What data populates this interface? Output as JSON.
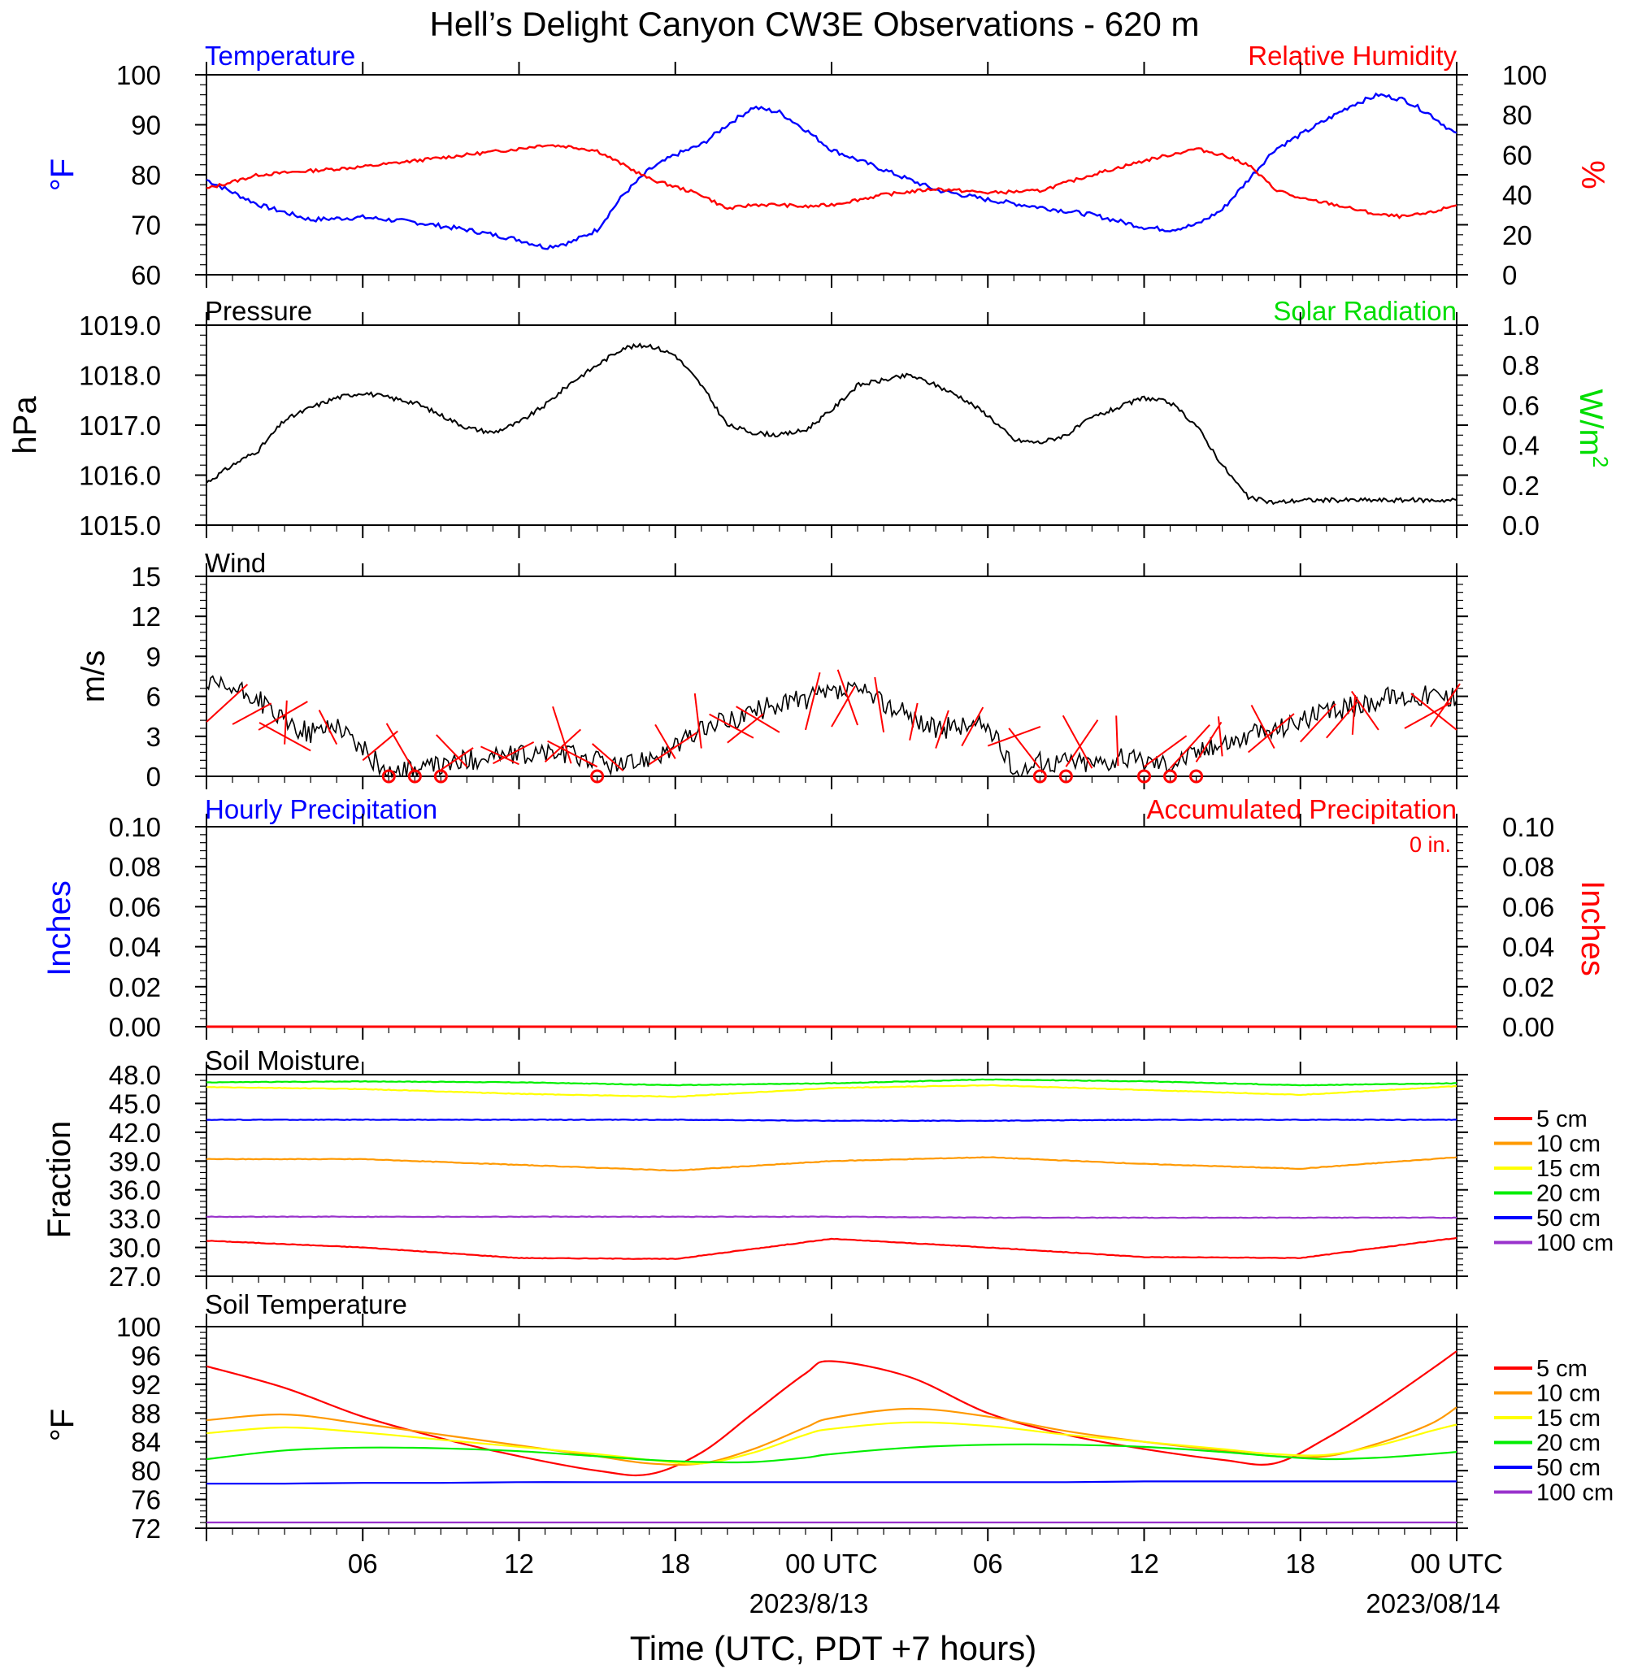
{
  "title": "Hell’s Delight Canyon CW3E Observations - 620 m",
  "xlabel": "Time (UTC, PDT +7 hours)",
  "x_axis": {
    "ticks": [
      "06",
      "12",
      "18",
      "00 UTC",
      "06",
      "12",
      "18",
      "00 UTC"
    ],
    "dates": [
      "2023/8/13",
      "2023/08/14"
    ],
    "range_hours": [
      0,
      48
    ]
  },
  "colors": {
    "temperature": "#0000ff",
    "humidity": "#ff0000",
    "solar": "#00dd00",
    "black": "#000000",
    "red": "#ff0000",
    "blue": "#0000ff"
  },
  "chart_data": [
    {
      "type": "line",
      "panel": "temperature-humidity",
      "left_title": "Temperature",
      "right_title": "Relative Humidity",
      "ylabel_left": "°F",
      "ylabel_right": "%",
      "ylim_left": [
        60,
        100
      ],
      "ylim_right": [
        0,
        100
      ],
      "yticks_left": [
        "60",
        "70",
        "80",
        "90",
        "100"
      ],
      "yticks_right": [
        "0",
        "20",
        "40",
        "60",
        "80",
        "100"
      ],
      "x": [
        0,
        2,
        4,
        6,
        8,
        10,
        12,
        13,
        14,
        15,
        16,
        17,
        18,
        19,
        20,
        21,
        22,
        23,
        24,
        26,
        28,
        30,
        32,
        34,
        36,
        37,
        38,
        39,
        40,
        41,
        42,
        43,
        44,
        45,
        46,
        47,
        48
      ],
      "series": [
        {
          "name": "Temperature",
          "axis": "left",
          "values": [
            79,
            74,
            71,
            71.5,
            70.5,
            69,
            67,
            65.5,
            66.5,
            69,
            76,
            81,
            84,
            86,
            90,
            93.5,
            92.5,
            89,
            85,
            81,
            77,
            75,
            73.5,
            72,
            69.5,
            69,
            70,
            73,
            79,
            85,
            88,
            91,
            94,
            96,
            95,
            92,
            88
          ]
        },
        {
          "name": "Relative Humidity",
          "axis": "left_rh",
          "values": [
            43,
            50,
            52,
            54,
            57,
            60,
            63,
            65,
            64,
            62,
            55,
            48,
            44,
            40,
            33,
            35,
            35,
            34,
            35,
            40,
            43,
            41,
            42,
            50,
            57,
            60,
            63,
            60,
            55,
            43,
            38,
            36,
            33,
            30,
            29,
            31,
            35
          ]
        }
      ]
    },
    {
      "type": "line",
      "panel": "pressure",
      "left_title": "Pressure",
      "right_title": "Solar Radiation",
      "ylabel_left": "hPa",
      "ylabel_right_base": "W/m",
      "ylabel_right_sup": "2",
      "ylim_left": [
        1015.0,
        1019.0
      ],
      "ylim_right": [
        0.0,
        1.0
      ],
      "yticks_left": [
        "1015.0",
        "1016.0",
        "1017.0",
        "1018.0",
        "1019.0"
      ],
      "yticks_right": [
        "0.0",
        "0.2",
        "0.4",
        "0.6",
        "0.8",
        "1.0"
      ],
      "series": [
        {
          "name": "Pressure",
          "x": [
            0,
            1,
            2,
            3,
            4,
            5,
            6,
            7,
            8,
            9,
            10,
            11,
            12,
            13,
            14,
            15,
            16,
            17,
            18,
            19,
            20,
            21,
            22,
            23,
            24,
            25,
            26,
            27,
            28,
            29,
            30,
            31,
            32,
            33,
            34,
            35,
            36,
            37,
            38,
            39,
            40,
            41,
            42,
            43,
            44,
            45,
            46,
            47,
            48
          ],
          "values": [
            1015.85,
            1016.2,
            1016.5,
            1017.1,
            1017.35,
            1017.55,
            1017.65,
            1017.55,
            1017.45,
            1017.2,
            1016.95,
            1016.85,
            1017.05,
            1017.4,
            1017.85,
            1018.2,
            1018.55,
            1018.6,
            1018.4,
            1017.8,
            1017.0,
            1016.85,
            1016.8,
            1016.9,
            1017.3,
            1017.8,
            1017.9,
            1018.0,
            1017.8,
            1017.55,
            1017.2,
            1016.7,
            1016.65,
            1016.8,
            1017.15,
            1017.35,
            1017.55,
            1017.45,
            1017.0,
            1016.2,
            1015.55,
            1015.45,
            1015.5,
            1015.5,
            1015.5,
            1015.5,
            1015.5,
            1015.5,
            1015.5
          ]
        }
      ]
    },
    {
      "type": "line",
      "panel": "wind",
      "left_title": "Wind",
      "ylabel_left": "m/s",
      "ylim_left": [
        0,
        15
      ],
      "yticks_left": [
        "0",
        "3",
        "6",
        "9",
        "12",
        "15"
      ],
      "series": [
        {
          "name": "Wind speed",
          "x": [
            0,
            1,
            2,
            3,
            4,
            5,
            6,
            7,
            8,
            9,
            10,
            11,
            12,
            13,
            14,
            15,
            16,
            17,
            18,
            19,
            20,
            21,
            22,
            23,
            24,
            25,
            26,
            27,
            28,
            29,
            30,
            31,
            32,
            33,
            34,
            35,
            36,
            37,
            38,
            39,
            40,
            41,
            42,
            43,
            44,
            45,
            46,
            47,
            48
          ],
          "values": [
            6.8,
            6.5,
            5.8,
            4.0,
            3.2,
            4.0,
            2.0,
            0.2,
            0.5,
            0.8,
            1.2,
            1.6,
            1.5,
            1.8,
            1.6,
            1.2,
            0.7,
            1.5,
            2.2,
            3.5,
            4.2,
            4.8,
            5.5,
            5.8,
            6.2,
            6.4,
            5.5,
            4.5,
            3.5,
            3.8,
            3.8,
            0.3,
            1.0,
            1.2,
            1.0,
            1.3,
            1.2,
            1.0,
            1.8,
            2.5,
            3.0,
            3.5,
            4.3,
            4.8,
            5.2,
            5.8,
            6.0,
            6.2,
            5.8
          ]
        },
        {
          "name": "Calm",
          "x": [
            7,
            8,
            9,
            15,
            32,
            33,
            36,
            37,
            38
          ],
          "values": [
            0,
            0,
            0,
            0,
            0,
            0,
            0,
            0,
            0
          ]
        }
      ]
    },
    {
      "type": "line",
      "panel": "precipitation",
      "left_title": "Hourly Precipitation",
      "right_title": "Accumulated Precipitation",
      "annotation": "0 in.",
      "ylabel_left": "Inches",
      "ylabel_right": "Inches",
      "ylim_left": [
        0.0,
        0.1
      ],
      "ylim_right": [
        0.0,
        0.1
      ],
      "yticks_left": [
        "0.00",
        "0.02",
        "0.04",
        "0.06",
        "0.08",
        "0.10"
      ],
      "yticks_right": [
        "0.00",
        "0.02",
        "0.04",
        "0.06",
        "0.08",
        "0.10"
      ],
      "series": [
        {
          "name": "Accumulated Precipitation",
          "x": [
            0,
            48
          ],
          "values": [
            0,
            0
          ]
        }
      ]
    },
    {
      "type": "line",
      "panel": "soil-moisture",
      "left_title": "Soil Moisture",
      "ylabel_left": "Fraction",
      "ylim_left": [
        27.0,
        48.0
      ],
      "yticks_left": [
        "27.0",
        "30.0",
        "33.0",
        "36.0",
        "39.0",
        "42.0",
        "45.0",
        "48.0"
      ],
      "legend": [
        "5 cm",
        "10 cm",
        "15 cm",
        "20 cm",
        "50 cm",
        "100 cm"
      ],
      "legend_colors": [
        "#ff0000",
        "#ff9900",
        "#ffff00",
        "#00ee00",
        "#0000ff",
        "#9933cc"
      ],
      "x": [
        0,
        6,
        12,
        18,
        24,
        30,
        36,
        42,
        48
      ],
      "series": [
        {
          "name": "5 cm",
          "values": [
            30.7,
            30.0,
            28.9,
            28.8,
            30.9,
            30.0,
            29.0,
            28.9,
            31.0
          ]
        },
        {
          "name": "10 cm",
          "values": [
            39.2,
            39.2,
            38.6,
            38.0,
            39.0,
            39.4,
            38.7,
            38.2,
            39.4
          ]
        },
        {
          "name": "15 cm",
          "values": [
            46.7,
            46.5,
            46.0,
            45.7,
            46.6,
            46.9,
            46.4,
            45.9,
            46.8
          ]
        },
        {
          "name": "20 cm",
          "values": [
            47.2,
            47.3,
            47.2,
            46.9,
            47.1,
            47.5,
            47.3,
            46.9,
            47.1
          ]
        },
        {
          "name": "50 cm",
          "values": [
            43.3,
            43.3,
            43.3,
            43.3,
            43.2,
            43.2,
            43.3,
            43.3,
            43.3
          ]
        },
        {
          "name": "100 cm",
          "values": [
            33.2,
            33.2,
            33.2,
            33.2,
            33.2,
            33.1,
            33.1,
            33.1,
            33.1
          ]
        }
      ]
    },
    {
      "type": "line",
      "panel": "soil-temperature",
      "left_title": "Soil Temperature",
      "ylabel_left": "°F",
      "ylim_left": [
        72,
        100
      ],
      "yticks_left": [
        "72",
        "76",
        "80",
        "84",
        "88",
        "92",
        "96",
        "100"
      ],
      "legend": [
        "5 cm",
        "10 cm",
        "15 cm",
        "20 cm",
        "50 cm",
        "100 cm"
      ],
      "legend_colors": [
        "#ff0000",
        "#ff9900",
        "#ffff00",
        "#00ee00",
        "#0000ff",
        "#9933cc"
      ],
      "x": [
        0,
        3,
        6,
        9,
        12,
        15,
        17,
        19,
        21,
        23,
        24,
        27,
        30,
        33,
        36,
        39,
        41,
        43,
        45,
        47,
        48
      ],
      "series": [
        {
          "name": "5 cm",
          "values": [
            94.5,
            91.5,
            87.5,
            84.5,
            82.0,
            80.0,
            79.5,
            82.5,
            88.0,
            93.5,
            95.2,
            93.0,
            88.0,
            85.0,
            83.0,
            81.5,
            81.0,
            84.5,
            89.0,
            94.0,
            96.6
          ]
        },
        {
          "name": "10 cm",
          "values": [
            87.0,
            87.8,
            86.5,
            85.0,
            83.5,
            82.0,
            81.0,
            81.0,
            83.0,
            86.0,
            87.3,
            88.6,
            87.5,
            85.5,
            84.0,
            82.8,
            82.0,
            82.0,
            83.8,
            86.5,
            88.8
          ]
        },
        {
          "name": "15 cm",
          "values": [
            85.2,
            86.0,
            85.3,
            84.3,
            83.3,
            82.3,
            81.5,
            81.0,
            82.5,
            85.0,
            85.8,
            86.7,
            86.2,
            85.0,
            84.0,
            83.0,
            82.3,
            82.2,
            83.5,
            85.5,
            86.4
          ]
        },
        {
          "name": "20 cm",
          "values": [
            81.6,
            82.8,
            83.2,
            83.1,
            82.7,
            82.0,
            81.5,
            81.2,
            81.2,
            81.8,
            82.3,
            83.2,
            83.6,
            83.6,
            83.3,
            82.6,
            82.0,
            81.6,
            81.8,
            82.3,
            82.6
          ]
        },
        {
          "name": "50 cm",
          "values": [
            78.2,
            78.2,
            78.3,
            78.3,
            78.4,
            78.4,
            78.4,
            78.4,
            78.4,
            78.4,
            78.4,
            78.4,
            78.4,
            78.4,
            78.5,
            78.5,
            78.5,
            78.5,
            78.5,
            78.5,
            78.5
          ]
        },
        {
          "name": "100 cm",
          "values": [
            72.8,
            72.8,
            72.8,
            72.8,
            72.8,
            72.8,
            72.8,
            72.8,
            72.8,
            72.8,
            72.8,
            72.8,
            72.8,
            72.8,
            72.8,
            72.8,
            72.8,
            72.8,
            72.8,
            72.8,
            72.8
          ]
        }
      ]
    }
  ]
}
